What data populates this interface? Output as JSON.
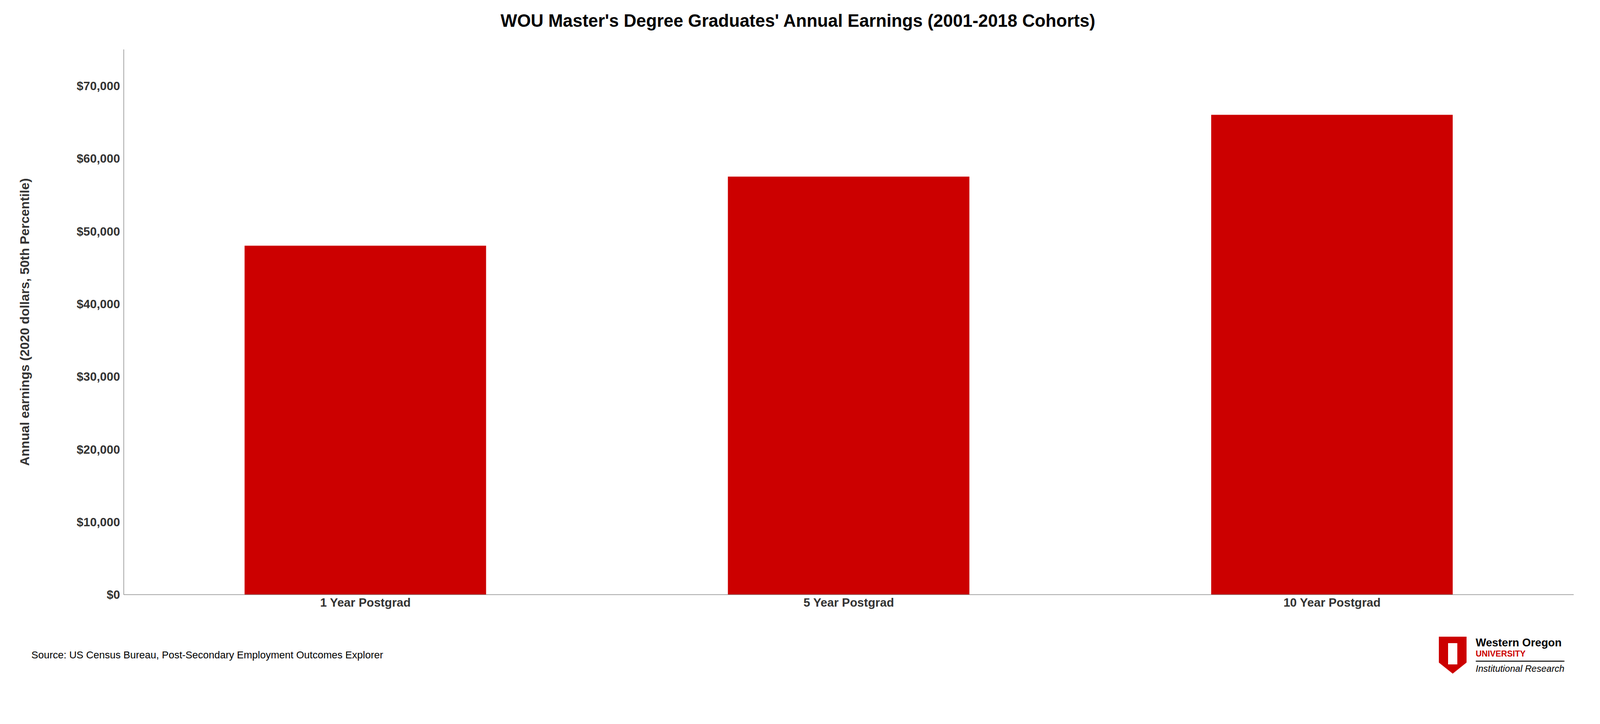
{
  "chart_data": {
    "type": "bar",
    "title": "WOU Master's Degree Graduates' Annual Earnings (2001-2018 Cohorts)",
    "categories": [
      "1 Year Postgrad",
      "5 Year Postgrad",
      "10 Year Postgrad"
    ],
    "values": [
      48000,
      57500,
      66000
    ],
    "color": "#CC0000",
    "ylabel": "Annual earnings (2020 dollars, 50th Percentile)",
    "ylim": [
      0,
      75000
    ],
    "yticks": [
      {
        "value": 0,
        "label": "$0"
      },
      {
        "value": 10000,
        "label": "$10,000"
      },
      {
        "value": 20000,
        "label": "$20,000"
      },
      {
        "value": 30000,
        "label": "$30,000"
      },
      {
        "value": 40000,
        "label": "$40,000"
      },
      {
        "value": 50000,
        "label": "$50,000"
      },
      {
        "value": 60000,
        "label": "$60,000"
      },
      {
        "value": 70000,
        "label": "$70,000"
      }
    ],
    "grid": false,
    "annotations": [
      "Source: US Census Bureau, Post-Secondary Employment Outcomes Explorer",
      "Western Oregon",
      "UNIVERSITY",
      "Institutional Research"
    ]
  }
}
